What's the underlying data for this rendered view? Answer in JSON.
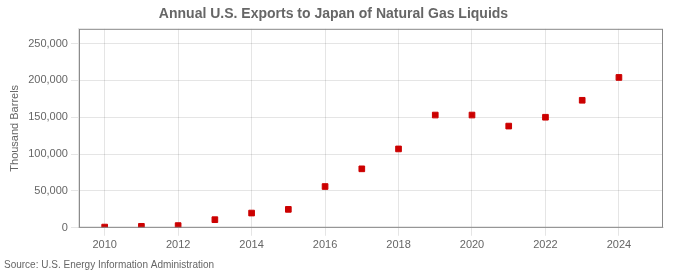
{
  "chart_data": {
    "type": "scatter",
    "title": "Annual U.S. Exports to Japan of Natural Gas Liquids",
    "ylabel": "Thousand Barrels",
    "annotations": [
      "Source: U.S. Energy Information Administration"
    ],
    "x": [
      2010,
      2011,
      2012,
      2013,
      2014,
      2015,
      2016,
      2017,
      2018,
      2019,
      2020,
      2021,
      2022,
      2023,
      2024
    ],
    "values": [
      1000,
      2000,
      3000,
      11000,
      20000,
      25000,
      56000,
      80000,
      107000,
      153000,
      153000,
      138000,
      150000,
      173000,
      204000
    ],
    "color": "#cc0000",
    "marker": "square",
    "xlim": [
      2009.3,
      2025.2
    ],
    "xticks": [
      2010,
      2012,
      2014,
      2016,
      2018,
      2020,
      2022,
      2024
    ],
    "ylim": [
      0,
      270000
    ],
    "yticks": [
      0,
      {
        "value": 50000,
        "label": "50,000"
      },
      {
        "value": 100000,
        "label": "100,000"
      },
      {
        "value": 150000,
        "label": "150,000"
      },
      {
        "value": 200000,
        "label": "200,000"
      },
      {
        "value": 250000,
        "label": "250,000"
      }
    ],
    "grid": true
  }
}
